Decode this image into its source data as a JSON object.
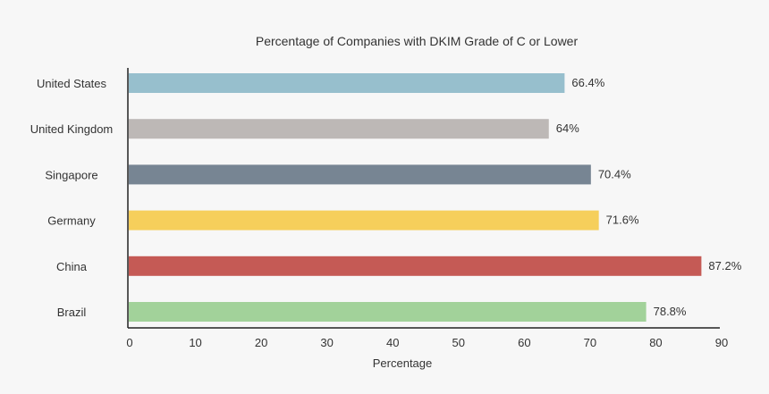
{
  "chart_data": {
    "type": "bar",
    "orientation": "horizontal",
    "title": "Percentage of Companies with DKIM Grade of C or Lower",
    "xlabel": "Percentage",
    "ylabel": "",
    "xlim": [
      0,
      90
    ],
    "xticks": [
      "0",
      "10",
      "20",
      "30",
      "40",
      "50",
      "60",
      "70",
      "80",
      "90"
    ],
    "grid": false,
    "categories": [
      "United States",
      "United Kingdom",
      "Singapore",
      "Germany",
      "China",
      "Brazil"
    ],
    "values": [
      66.4,
      64,
      70.4,
      71.6,
      87.2,
      78.8
    ],
    "value_labels": [
      "66.4%",
      "64%",
      "70.4%",
      "71.6%",
      "87.2%",
      "78.8%"
    ],
    "colors": [
      "#97bfcd",
      "#bdb8b6",
      "#778593",
      "#f6cf5b",
      "#c55a55",
      "#a2d29a"
    ]
  }
}
